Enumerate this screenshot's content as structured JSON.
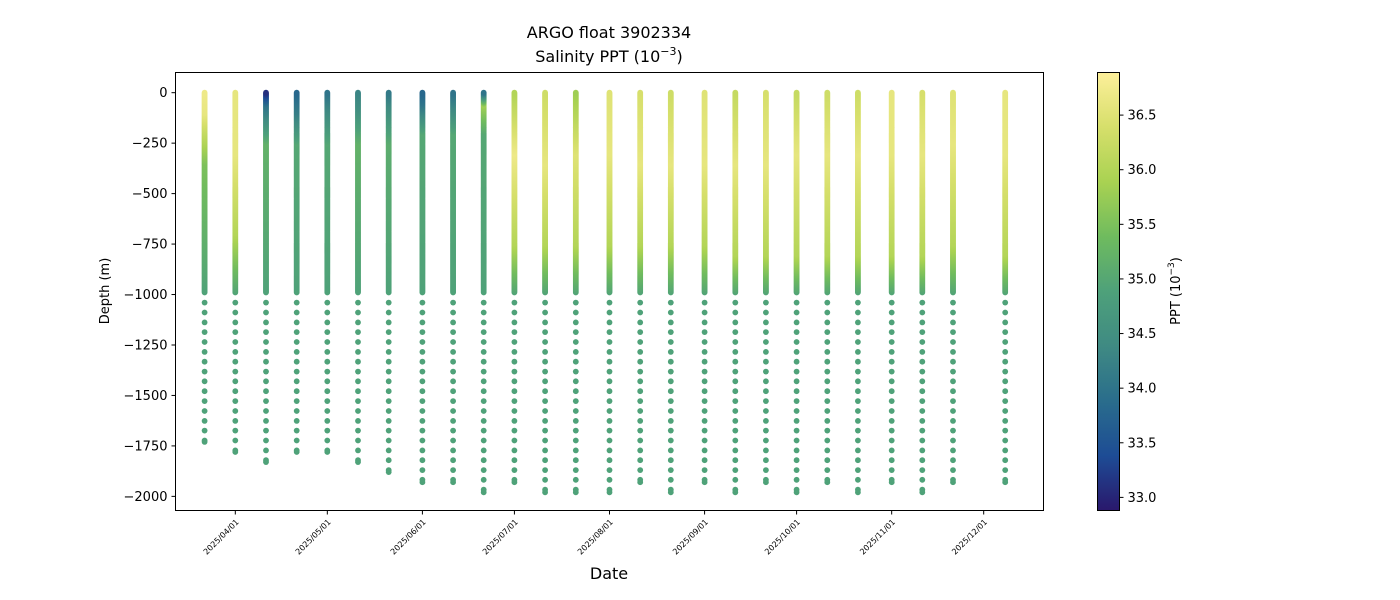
{
  "chart_data": {
    "type": "scatter",
    "title": "ARGO float 3902334",
    "subtitle_prefix": "Salinity PPT (10",
    "subtitle_exp": "−3",
    "subtitle_suffix": ")",
    "xlabel": "Date",
    "ylabel": "Depth (m)",
    "colorbar_label_prefix": "PPT (10",
    "colorbar_label_exp": "−3",
    "colorbar_label_suffix": ")",
    "colormap": "haline",
    "colormap_stops": [
      "#2a186c",
      "#1d4c95",
      "#2a6d8c",
      "#3f8a83",
      "#4ea17a",
      "#6fbb5e",
      "#a9d252",
      "#d6df6b",
      "#fdef9a"
    ],
    "color_range": [
      32.88,
      36.89
    ],
    "ylim": [
      -2070,
      100
    ],
    "xlim_days": [
      -19.5,
      263.5
    ],
    "x_ticks": [
      "2025/04/01",
      "2025/05/01",
      "2025/06/01",
      "2025/07/01",
      "2025/08/01",
      "2025/09/01",
      "2025/10/01",
      "2025/11/01",
      "2025/12/01"
    ],
    "x_tick_days": [
      0,
      30,
      61,
      91,
      122,
      153,
      183,
      214,
      244
    ],
    "y_ticks": [
      "0",
      "−250",
      "−500",
      "−750",
      "−1000",
      "−1250",
      "−1500",
      "−1750",
      "−2000"
    ],
    "y_tick_values": [
      0,
      -250,
      -500,
      -750,
      -1000,
      -1250,
      -1500,
      -1750,
      -2000
    ],
    "cb_ticks": [
      "33.0",
      "33.5",
      "34.0",
      "34.5",
      "35.0",
      "35.5",
      "36.0",
      "36.5"
    ],
    "cb_tick_values": [
      33.0,
      33.5,
      34.0,
      34.5,
      35.0,
      35.5,
      36.0,
      36.5
    ],
    "deep_salinity": 34.9,
    "profiles": [
      {
        "date": "2025/03/22",
        "max_depth": -1730,
        "surface": 36.7,
        "near": 36.6,
        "mix_depth": -100,
        "deep_transition": -350,
        "mid": 35.5
      },
      {
        "date": "2025/04/01",
        "max_depth": -1780,
        "surface": 36.6,
        "near": 36.6,
        "mix_depth": -300,
        "deep_transition": -700,
        "mid": 36.0
      },
      {
        "date": "2025/04/11",
        "max_depth": -1830,
        "surface": 33.1,
        "near": 34.0,
        "mix_depth": -60,
        "deep_transition": -250,
        "mid": 35.2
      },
      {
        "date": "2025/04/21",
        "max_depth": -1780,
        "surface": 33.8,
        "near": 34.2,
        "mix_depth": -100,
        "deep_transition": -250,
        "mid": 35.0
      },
      {
        "date": "2025/05/01",
        "max_depth": -1780,
        "surface": 34.0,
        "near": 34.3,
        "mix_depth": -60,
        "deep_transition": -250,
        "mid": 35.0
      },
      {
        "date": "2025/05/11",
        "max_depth": -1830,
        "surface": 34.3,
        "near": 34.5,
        "mix_depth": -80,
        "deep_transition": -250,
        "mid": 35.2
      },
      {
        "date": "2025/05/21",
        "max_depth": -1880,
        "surface": 34.1,
        "near": 34.4,
        "mix_depth": -60,
        "deep_transition": -250,
        "mid": 35.1
      },
      {
        "date": "2025/06/01",
        "max_depth": -1930,
        "surface": 33.8,
        "near": 34.0,
        "mix_depth": -50,
        "deep_transition": -200,
        "mid": 35.0
      },
      {
        "date": "2025/06/11",
        "max_depth": -1930,
        "surface": 34.0,
        "near": 34.3,
        "mix_depth": -60,
        "deep_transition": -200,
        "mid": 35.0
      },
      {
        "date": "2025/06/21",
        "max_depth": -1980,
        "surface": 34.0,
        "near": 35.8,
        "mix_depth": -60,
        "deep_transition": -200,
        "mid": 35.0
      },
      {
        "date": "2025/07/01",
        "max_depth": -1930,
        "surface": 36.0,
        "near": 36.7,
        "mix_depth": -300,
        "deep_transition": -750,
        "mid": 36.0
      },
      {
        "date": "2025/07/11",
        "max_depth": -1980,
        "surface": 36.3,
        "near": 36.6,
        "mix_depth": -350,
        "deep_transition": -750,
        "mid": 36.0
      },
      {
        "date": "2025/07/21",
        "max_depth": -1980,
        "surface": 35.8,
        "near": 36.5,
        "mix_depth": -300,
        "deep_transition": -750,
        "mid": 36.0
      },
      {
        "date": "2025/08/01",
        "max_depth": -1980,
        "surface": 36.5,
        "near": 36.6,
        "mix_depth": -300,
        "deep_transition": -750,
        "mid": 36.0
      },
      {
        "date": "2025/08/11",
        "max_depth": -1930,
        "surface": 36.4,
        "near": 36.6,
        "mix_depth": -350,
        "deep_transition": -750,
        "mid": 36.0
      },
      {
        "date": "2025/08/21",
        "max_depth": -1980,
        "surface": 36.3,
        "near": 36.6,
        "mix_depth": -350,
        "deep_transition": -750,
        "mid": 36.0
      },
      {
        "date": "2025/09/01",
        "max_depth": -1930,
        "surface": 36.5,
        "near": 36.6,
        "mix_depth": -350,
        "deep_transition": -750,
        "mid": 36.0
      },
      {
        "date": "2025/09/11",
        "max_depth": -1980,
        "surface": 36.2,
        "near": 36.6,
        "mix_depth": -350,
        "deep_transition": -800,
        "mid": 36.0
      },
      {
        "date": "2025/09/21",
        "max_depth": -1930,
        "surface": 36.4,
        "near": 36.6,
        "mix_depth": -350,
        "deep_transition": -800,
        "mid": 36.0
      },
      {
        "date": "2025/10/01",
        "max_depth": -1980,
        "surface": 36.2,
        "near": 36.6,
        "mix_depth": -300,
        "deep_transition": -800,
        "mid": 36.0
      },
      {
        "date": "2025/10/11",
        "max_depth": -1930,
        "surface": 36.3,
        "near": 36.6,
        "mix_depth": -300,
        "deep_transition": -800,
        "mid": 36.0
      },
      {
        "date": "2025/10/21",
        "max_depth": -1980,
        "surface": 36.3,
        "near": 36.6,
        "mix_depth": -300,
        "deep_transition": -800,
        "mid": 36.0
      },
      {
        "date": "2025/11/01",
        "max_depth": -1930,
        "surface": 36.6,
        "near": 36.6,
        "mix_depth": -300,
        "deep_transition": -800,
        "mid": 36.0
      },
      {
        "date": "2025/11/11",
        "max_depth": -1980,
        "surface": 36.4,
        "near": 36.6,
        "mix_depth": -300,
        "deep_transition": -800,
        "mid": 36.0
      },
      {
        "date": "2025/11/21",
        "max_depth": -1930,
        "surface": 36.5,
        "near": 36.6,
        "mix_depth": -250,
        "deep_transition": -750,
        "mid": 36.0
      },
      {
        "date": "2025/12/08",
        "max_depth": -1930,
        "surface": 36.6,
        "near": 36.6,
        "mix_depth": -300,
        "deep_transition": -800,
        "mid": 36.0
      }
    ]
  }
}
